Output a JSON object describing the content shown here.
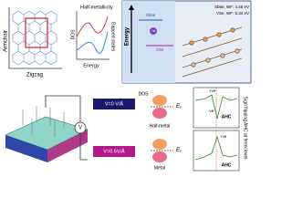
{
  "lattice": {
    "armchair": "Armchair",
    "zigzag": "Zigzag",
    "dos": "DOS",
    "half_metallicity": "Half-metallicity",
    "energy": "Energy",
    "gapped_states": "Gapped states"
  },
  "bands": {
    "energy": "Energy",
    "sb_label": "Sb6e",
    "wf_sb": "Sb6e, WF: 4.45 eV",
    "wf_vse": "VSe, WF: 5.34 eV",
    "charge": "+e",
    "vse_label": "VSe"
  },
  "device": {
    "voltage": "V"
  },
  "dos_panel": {
    "field_0": "V=0 V/Å",
    "field_1": "V=0.5V/Å",
    "dos": "DOS",
    "ef_top": "E",
    "ef_bottom": "E",
    "ef_sub": "F",
    "half_metal": "Half-metal",
    "metal": "Metal"
  },
  "ahc": {
    "title": "Sign flipping AHC at fermi level",
    "pos_top": "+ve",
    "neg_top": "-ve",
    "ahc_top": "AHC",
    "pos_bottom": "+ve",
    "ahc_bottom": "AHC"
  }
}
